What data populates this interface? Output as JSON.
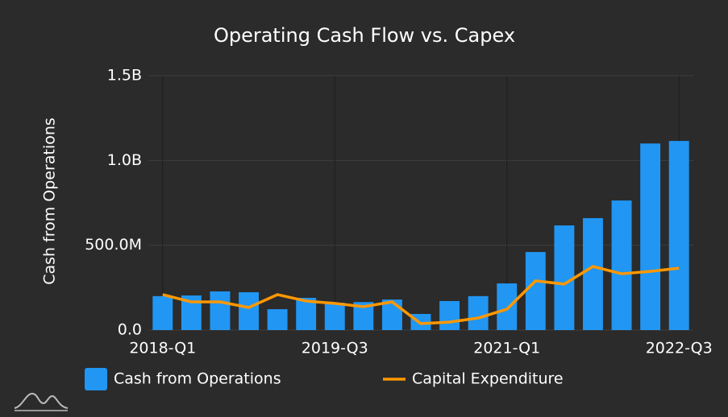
{
  "chart_data": {
    "type": "bar",
    "title": "Operating Cash Flow vs. Capex",
    "y_label": "Cash from Operations",
    "categories": [
      "2018-Q1",
      null,
      null,
      null,
      null,
      null,
      "2019-Q3",
      null,
      null,
      null,
      null,
      null,
      "2021-Q1",
      null,
      null,
      null,
      null,
      null,
      "2022-Q3"
    ],
    "series": [
      {
        "name": "Cash from Operations",
        "type": "bar",
        "color": "#2196f3",
        "values": [
          200000000,
          204000000,
          228000000,
          223000000,
          123000000,
          190000000,
          161000000,
          165000000,
          180000000,
          95000000,
          171000000,
          200000000,
          275000000,
          460000000,
          617000000,
          660000000,
          764000000,
          1100000000,
          1115000000
        ]
      },
      {
        "name": "Capital Expenditure",
        "type": "line",
        "color": "#ff9800",
        "values": [
          209000000,
          166000000,
          166000000,
          133000000,
          209000000,
          171000000,
          157000000,
          138000000,
          166000000,
          38000000,
          47000000,
          71000000,
          123000000,
          290000000,
          271000000,
          375000000,
          332000000,
          346000000,
          365000000
        ]
      }
    ],
    "ylim": [
      0,
      1500000000
    ],
    "yticks": [
      {
        "value": 0,
        "label": "0.0"
      },
      {
        "value": 500000000,
        "label": "500.0M"
      },
      {
        "value": 1000000000,
        "label": "1.0B"
      },
      {
        "value": 1500000000,
        "label": "1.5B"
      }
    ],
    "grid": true,
    "legend": "bottom"
  }
}
